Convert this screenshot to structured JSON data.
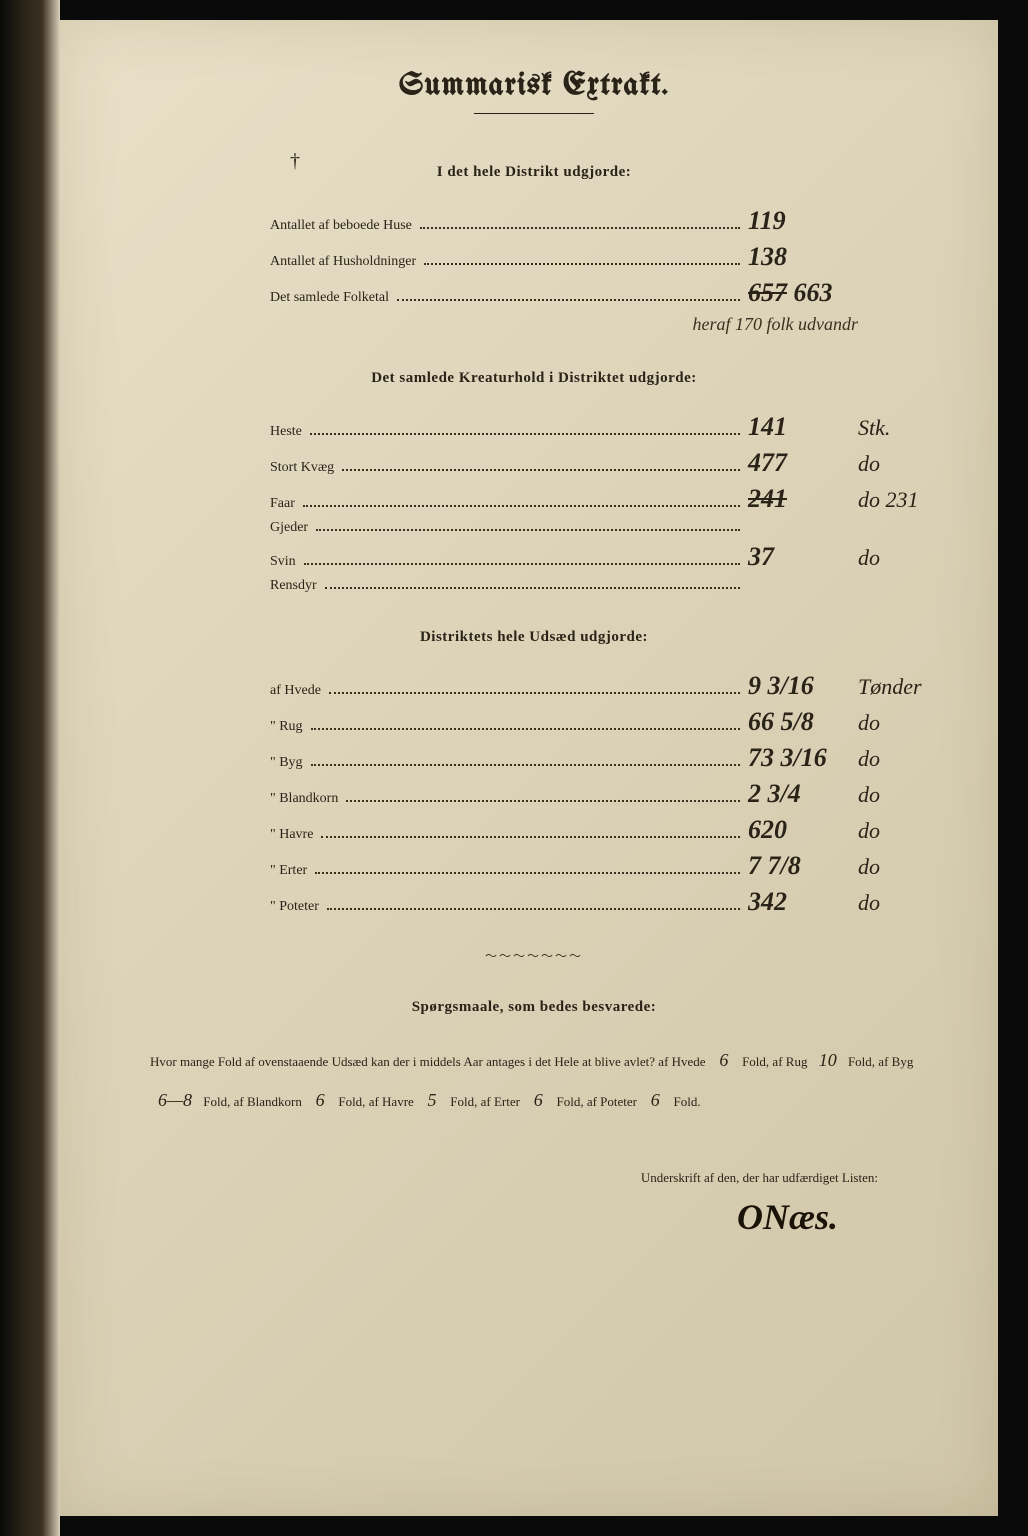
{
  "title": "Summarisk Extrakt.",
  "tick_mark": "†",
  "section1": {
    "heading": "I det hele Distrikt udgjorde:",
    "rows": [
      {
        "label": "Antallet af beboede Huse",
        "value": "119",
        "unit": ""
      },
      {
        "label": "Antallet af Husholdninger",
        "value": "138",
        "unit": ""
      },
      {
        "label": "Det samlede Folketal",
        "value": "657",
        "value_corrected": "663",
        "unit": ""
      }
    ],
    "annotation": "heraf 170 folk udvandr"
  },
  "section2": {
    "heading": "Det samlede Kreaturhold i Distriktet udgjorde:",
    "rows": [
      {
        "label": "Heste",
        "value": "141",
        "unit": "Stk."
      },
      {
        "label": "Stort Kvæg",
        "value": "477",
        "unit": "do"
      },
      {
        "label": "Faar",
        "value": "241",
        "unit": "do 231"
      },
      {
        "label": "Gjeder",
        "value": "",
        "unit": ""
      },
      {
        "label": "Svin",
        "value": "37",
        "unit": "do"
      },
      {
        "label": "Rensdyr",
        "value": "",
        "unit": ""
      }
    ]
  },
  "section3": {
    "heading": "Distriktets hele Udsæd udgjorde:",
    "rows": [
      {
        "label": "af Hvede",
        "value": "9 3/16",
        "unit": "Tønder"
      },
      {
        "label": "\" Rug",
        "value": "66 5/8",
        "unit": "do"
      },
      {
        "label": "\" Byg",
        "value": "73 3/16",
        "unit": "do"
      },
      {
        "label": "\" Blandkorn",
        "value": "2 3/4",
        "unit": "do"
      },
      {
        "label": "\" Havre",
        "value": "620",
        "unit": "do"
      },
      {
        "label": "\" Erter",
        "value": "7 7/8",
        "unit": "do"
      },
      {
        "label": "\" Poteter",
        "value": "342",
        "unit": "do"
      }
    ]
  },
  "questions": {
    "heading": "Spørgsmaale, som bedes besvarede:",
    "intro": "Hvor mange Fold af ovenstaaende Udsæd kan der i middels Aar antages i det Hele at blive avlet?",
    "items": [
      {
        "label": "af Hvede",
        "value": "6",
        "suffix": "Fold,"
      },
      {
        "label": "af Rug",
        "value": "10",
        "suffix": "Fold,"
      },
      {
        "label": "af Byg",
        "value": "6—8",
        "suffix": "Fold,"
      },
      {
        "label": "af Blandkorn",
        "value": "6",
        "suffix": "Fold,"
      },
      {
        "label": "af Havre",
        "value": "5",
        "suffix": "Fold,"
      },
      {
        "label": "af Erter",
        "value": "6",
        "suffix": "Fold,"
      },
      {
        "label": "af Poteter",
        "value": "6",
        "suffix": "Fold."
      }
    ]
  },
  "signature": {
    "label": "Underskrift af den, der har udfærdiget Listen:",
    "name": "ONæs."
  }
}
